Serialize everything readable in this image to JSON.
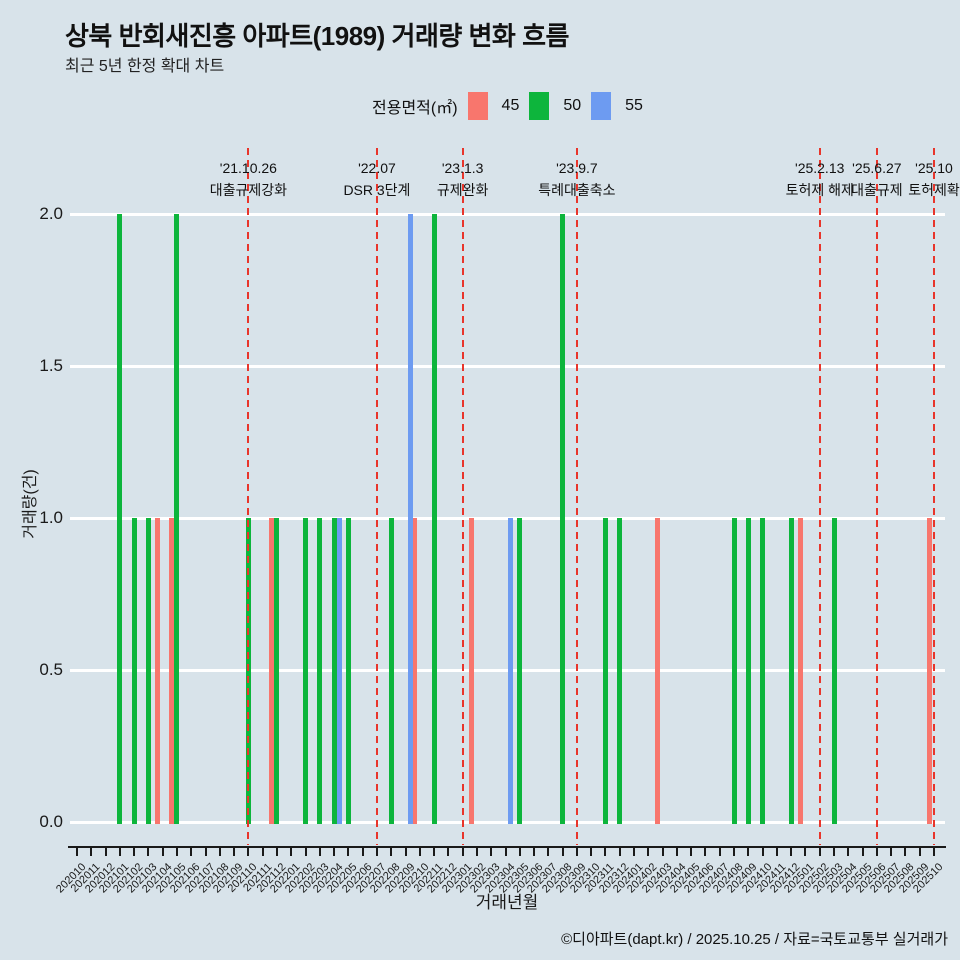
{
  "title": "상북 반회새진흥 아파트(1989) 거래량 변화 흐름",
  "subtitle": "최근 5년 한정 확대 차트",
  "footer": "©디아파트(dapt.kr) / 2025.10.25 / 자료=국토교통부 실거래가",
  "legend": {
    "label": "전용면적(㎡)",
    "items": [
      {
        "name": "45",
        "color": "#F8766D"
      },
      {
        "name": "50",
        "color": "#0DB53C"
      },
      {
        "name": "55",
        "color": "#6D9BF1"
      }
    ]
  },
  "colors": {
    "background": "#d8e3ea",
    "grid": "#ffffff",
    "annotation_line": "#e8352b",
    "axis": "#1a1a1a"
  },
  "chart_data": {
    "type": "bar",
    "title": "상북 반회새진흥 아파트(1989) 거래량 변화 흐름",
    "subtitle": "최근 5년 한정 확대 차트",
    "xlabel": "거래년월",
    "ylabel": "거래량(건)",
    "ylim": [
      0,
      2
    ],
    "yticks": [
      "0.0",
      "0.5",
      "1.0",
      "1.5",
      "2.0"
    ],
    "grid": true,
    "legend_position": "top",
    "categories": [
      "202010",
      "202011",
      "202012",
      "202101",
      "202102",
      "202103",
      "202104",
      "202105",
      "202106",
      "202107",
      "202108",
      "202109",
      "202110",
      "202111",
      "202112",
      "202201",
      "202202",
      "202203",
      "202204",
      "202205",
      "202206",
      "202207",
      "202208",
      "202209",
      "202210",
      "202211",
      "202212",
      "202301",
      "202302",
      "202303",
      "202304",
      "202305",
      "202306",
      "202307",
      "202308",
      "202309",
      "202310",
      "202311",
      "202312",
      "202401",
      "202402",
      "202403",
      "202404",
      "202405",
      "202406",
      "202407",
      "202408",
      "202409",
      "202410",
      "202411",
      "202412",
      "202501",
      "202502",
      "202503",
      "202504",
      "202505",
      "202506",
      "202507",
      "202508",
      "202509",
      "202510"
    ],
    "series": [
      {
        "name": "45",
        "color": "#F8766D",
        "values": {
          "202104": 1,
          "202105": 1,
          "202112": 1,
          "202210": 1,
          "202302": 1,
          "202403": 1,
          "202501": 1,
          "202510": 1
        }
      },
      {
        "name": "50",
        "color": "#0DB53C",
        "values": {
          "202101": 2,
          "202102": 1,
          "202103": 1,
          "202105": 2,
          "202110": 1,
          "202112": 1,
          "202202": 1,
          "202203": 1,
          "202204": 1,
          "202205": 1,
          "202208": 1,
          "202211": 2,
          "202305": 1,
          "202308": 2,
          "202311": 1,
          "202312": 1,
          "202408": 1,
          "202409": 1,
          "202410": 1,
          "202412": 1,
          "202503": 1
        }
      },
      {
        "name": "55",
        "color": "#6D9BF1",
        "values": {
          "202204": 1,
          "202209": 2,
          "202304": 1
        }
      }
    ],
    "annotations": [
      {
        "month": "202110",
        "date": "'21.10.26",
        "label": "대출규제강화"
      },
      {
        "month": "202207",
        "date": "'22.07",
        "label": "DSR 3단계"
      },
      {
        "month": "202301",
        "date": "'23.1.3",
        "label": "규제완화"
      },
      {
        "month": "202309",
        "date": "'23.9.7",
        "label": "특례대출축소"
      },
      {
        "month": "202502",
        "date": "'25.2.13",
        "label": "토허제 해제"
      },
      {
        "month": "202506",
        "date": "'25.6.27",
        "label": "대출규제"
      },
      {
        "month": "202510",
        "date": "'25.10",
        "label": "토허제확"
      }
    ]
  }
}
